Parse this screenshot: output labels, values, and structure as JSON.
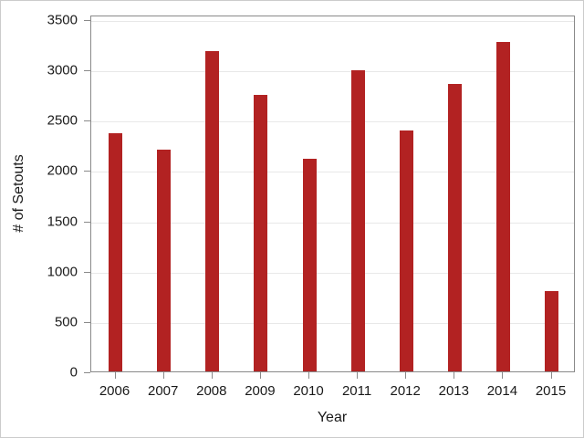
{
  "chart_data": {
    "type": "bar",
    "categories": [
      "2006",
      "2007",
      "2008",
      "2009",
      "2010",
      "2011",
      "2012",
      "2013",
      "2014",
      "2015"
    ],
    "values": [
      2370,
      2205,
      3185,
      2750,
      2115,
      2990,
      2395,
      2860,
      3275,
      795
    ],
    "title": "",
    "xlabel": "Year",
    "ylabel": "# of Setouts",
    "ylim": [
      0,
      3545
    ],
    "yticks": [
      0,
      500,
      1000,
      1500,
      2000,
      2500,
      3000,
      3500
    ],
    "grid": "horizontal-only",
    "legend": "none",
    "colors": {
      "bar": "#b22222",
      "frame": "#898989",
      "gridline": "#e8e8e8",
      "text": "#1a1a1a",
      "background": "#ffffff",
      "outer_border": "#cccccc"
    }
  }
}
